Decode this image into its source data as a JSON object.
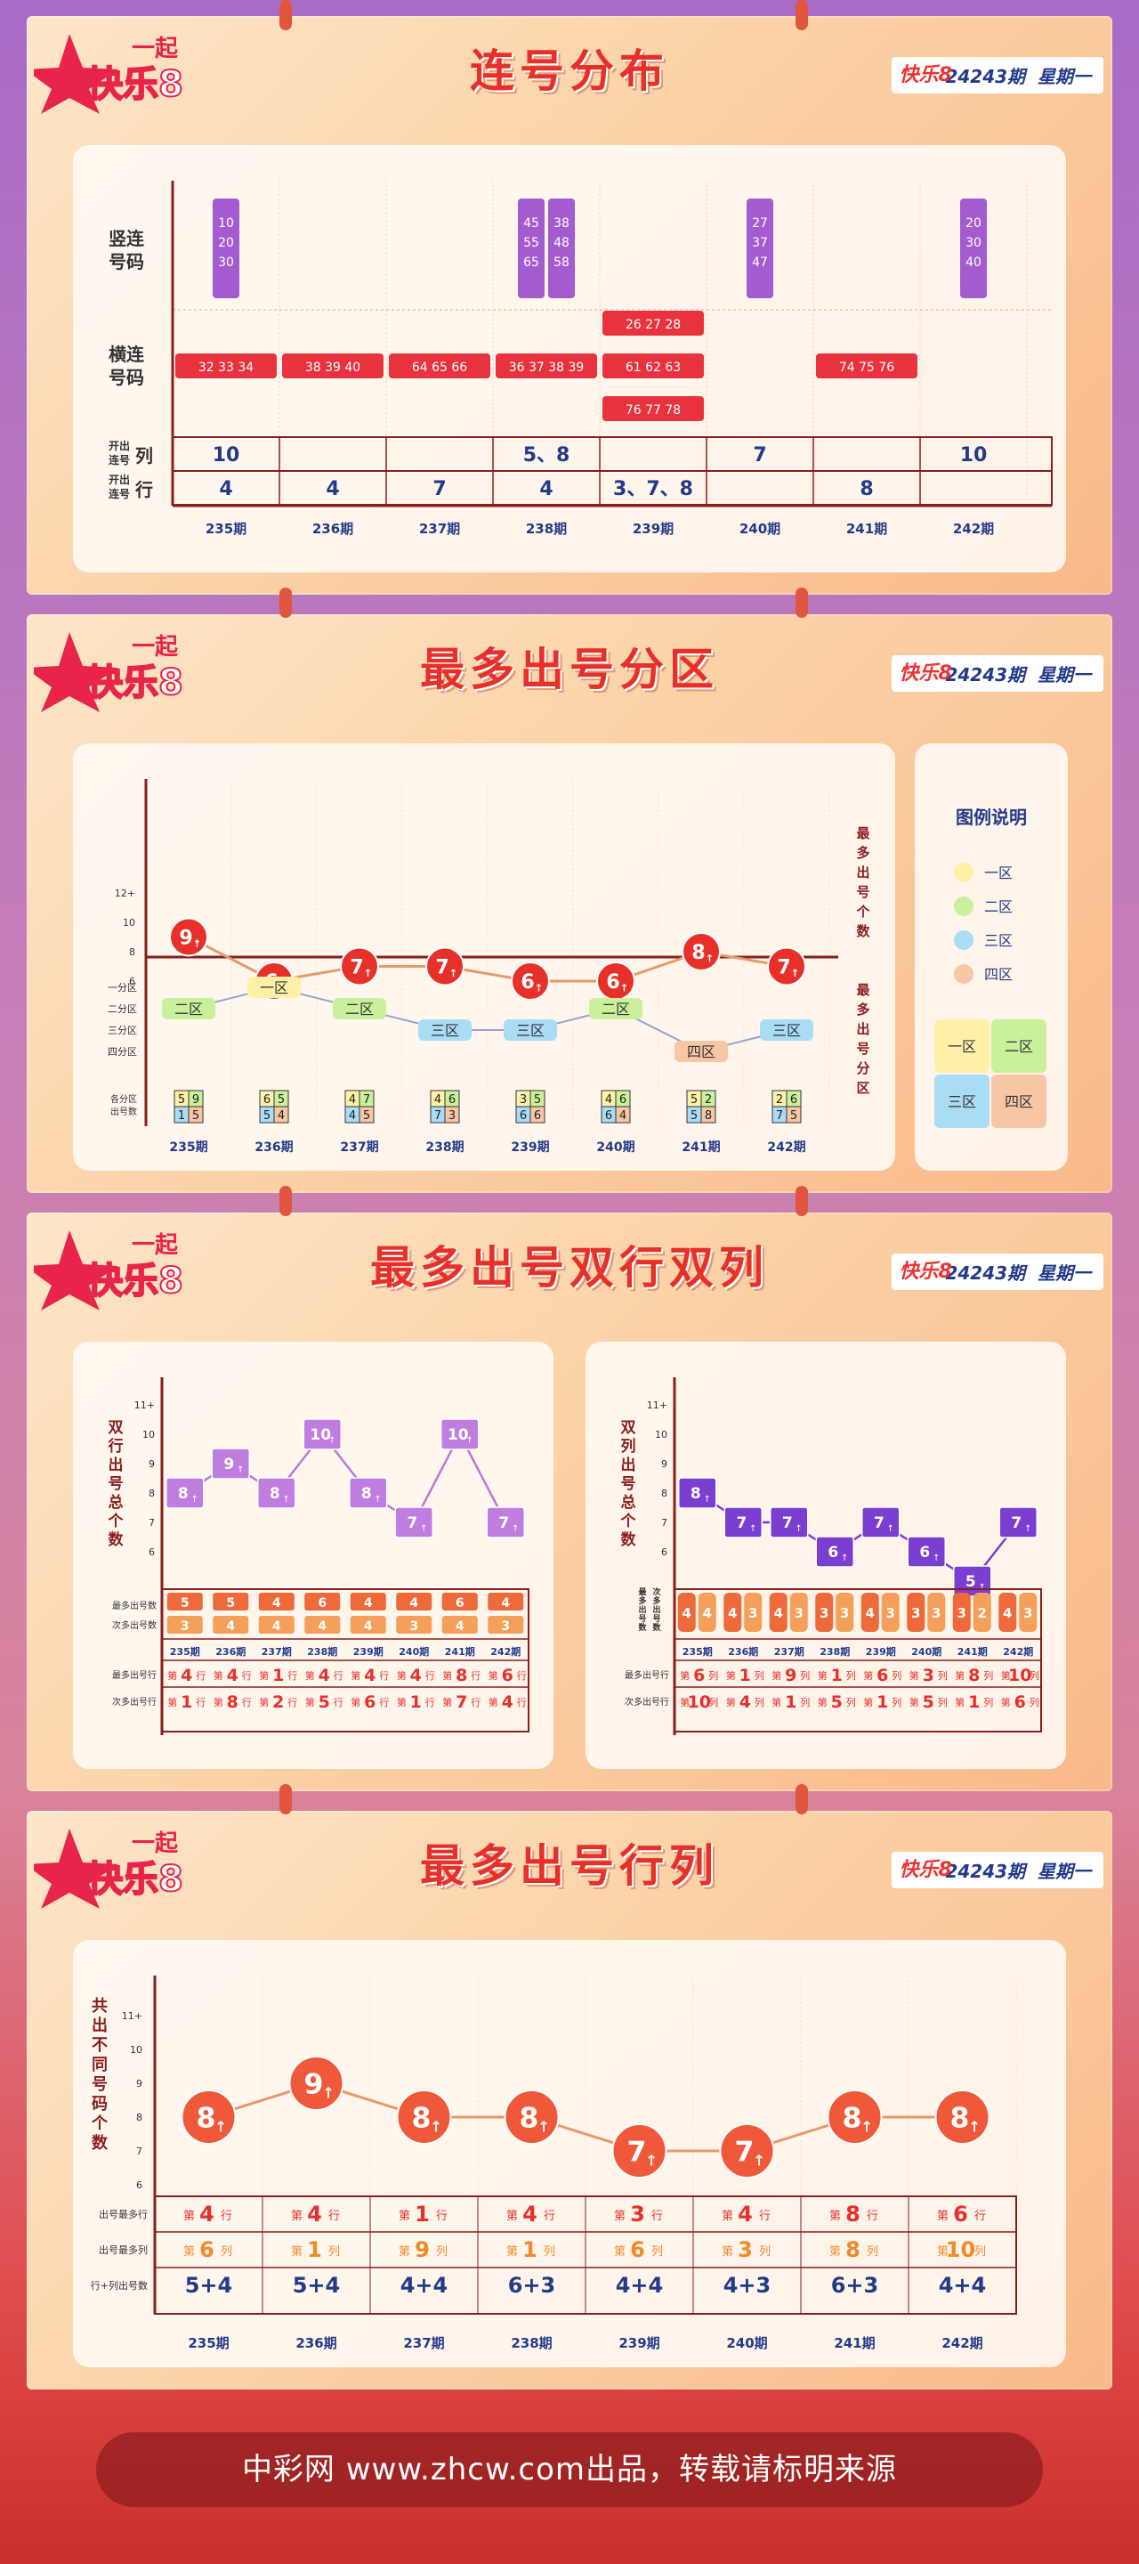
{
  "brand": {
    "logo_top": "一起",
    "logo_main": "快乐8",
    "issue": "24243期",
    "weekday": "星期一",
    "k8": "快乐8"
  },
  "periods": [
    "235期",
    "236期",
    "237期",
    "238期",
    "239期",
    "240期",
    "241期",
    "242期"
  ],
  "s1": {
    "title": "连号分布",
    "row_vertical": "竖连号码",
    "row_horizontal": "横连号码",
    "row_col": "开出连号列",
    "row_row": "开出连号行",
    "row_col_short": "列",
    "row_row_short": "行",
    "row_col_pre": "开出连号",
    "chart_data": {
      "type": "table",
      "vertical": [
        [
          "10",
          "20",
          "30"
        ],
        [],
        [],
        [
          "45",
          "55",
          "65",
          "38",
          "48",
          "58"
        ],
        [],
        [
          "27",
          "37",
          "47"
        ],
        [],
        [
          "20",
          "30",
          "40"
        ]
      ],
      "horizontal": [
        [
          "32 33 34"
        ],
        [
          "38 39 40"
        ],
        [
          "64 65 66"
        ],
        [
          "36 37 38 39"
        ],
        [
          "26 27 28",
          "61 62 63",
          "76 77 78"
        ],
        [],
        [
          "74 75 76"
        ],
        []
      ],
      "cols": [
        "10",
        "",
        "",
        "5、8",
        "",
        "7",
        "",
        "10"
      ],
      "rows": [
        "4",
        "4",
        "7",
        "4",
        "3、7、8",
        "",
        "8",
        ""
      ]
    }
  },
  "s2": {
    "title": "最多出号分区",
    "right_top": "最多出号个数",
    "right_bottom": "最多出号分区",
    "legend_title": "图例说明",
    "legend": [
      "一区",
      "二区",
      "三区",
      "四区"
    ],
    "zone_labels": [
      "一分区",
      "二分区",
      "三分区",
      "四分区"
    ],
    "count_label": "各分区出号数",
    "chart_data": {
      "type": "line",
      "y_ticks": [
        "12+",
        "10",
        "8",
        "6"
      ],
      "max_counts": [
        9,
        6,
        7,
        7,
        6,
        6,
        8,
        7
      ],
      "max_zone": [
        "二区",
        "一区",
        "二区",
        "三区",
        "三区",
        "二区",
        "四区",
        "三区"
      ],
      "zone_counts": [
        [
          5,
          9,
          1,
          5
        ],
        [
          6,
          5,
          5,
          4
        ],
        [
          4,
          7,
          4,
          5
        ],
        [
          4,
          6,
          7,
          3
        ],
        [
          3,
          5,
          6,
          6
        ],
        [
          4,
          6,
          6,
          4
        ],
        [
          5,
          2,
          5,
          8
        ],
        [
          2,
          6,
          7,
          5
        ]
      ]
    }
  },
  "s3": {
    "title": "最多出号双行双列",
    "left_label": "双行出号总个数",
    "right_label": "双列出号总个数",
    "row_max": "最多出号数",
    "row_second": "次多出号数",
    "row_max_line": "最多出号行",
    "row_second_line": "次多出号行",
    "col_label_a": "最多出号数",
    "col_label_b": "次多出号数",
    "col_max_line": "最多出号行",
    "col_second_line": "次多出号行",
    "chart_data": [
      {
        "type": "line",
        "name": "双行",
        "y_ticks": [
          "11+",
          "10",
          "9",
          "8",
          "7",
          "6"
        ],
        "values": [
          8,
          9,
          8,
          10,
          8,
          7,
          10,
          7
        ],
        "max": [
          "5",
          "5",
          "4",
          "6",
          "4",
          "4",
          "6",
          "4"
        ],
        "second": [
          "3",
          "4",
          "4",
          "4",
          "4",
          "3",
          "4",
          "3"
        ],
        "max_line": [
          "4",
          "4",
          "1",
          "4",
          "4",
          "4",
          "8",
          "6"
        ],
        "second_line": [
          "1",
          "8",
          "2",
          "5",
          "6",
          "1",
          "7",
          "4"
        ]
      },
      {
        "type": "line",
        "name": "双列",
        "y_ticks": [
          "11+",
          "10",
          "9",
          "8",
          "7",
          "6"
        ],
        "values": [
          8,
          7,
          7,
          6,
          7,
          6,
          5,
          7
        ],
        "pairs": [
          [
            "4",
            "4"
          ],
          [
            "4",
            "3"
          ],
          [
            "4",
            "3"
          ],
          [
            "3",
            "3"
          ],
          [
            "4",
            "3"
          ],
          [
            "3",
            "3"
          ],
          [
            "3",
            "2"
          ],
          [
            "4",
            "3"
          ]
        ],
        "max_line": [
          "6",
          "1",
          "9",
          "1",
          "6",
          "3",
          "8",
          "10"
        ],
        "second_line": [
          "10",
          "4",
          "1",
          "5",
          "1",
          "5",
          "1",
          "6"
        ]
      }
    ]
  },
  "s4": {
    "title": "最多出号行列",
    "left_label": "共出不同号码个数",
    "row_a": "出号最多行",
    "row_b": "出号最多列",
    "row_c": "行+列出号数",
    "unit_row": "行",
    "unit_col": "列",
    "prefix": "第",
    "chart_data": {
      "type": "line",
      "y_ticks": [
        "11+",
        "10",
        "9",
        "8",
        "7",
        "6"
      ],
      "values": [
        8,
        9,
        8,
        8,
        7,
        7,
        8,
        8
      ],
      "rows": [
        "4",
        "4",
        "1",
        "4",
        "3",
        "4",
        "8",
        "6"
      ],
      "cols": [
        "6",
        "1",
        "9",
        "1",
        "6",
        "3",
        "8",
        "10"
      ],
      "sum": [
        "5+4",
        "5+4",
        "4+4",
        "6+3",
        "4+4",
        "4+3",
        "6+3",
        "4+4"
      ]
    }
  },
  "footer": "中彩网 www.zhcw.com出品，转载请标明来源",
  "colors": {
    "red": "#e8302a",
    "line": "#e69a6c",
    "purple": "#a45bd0",
    "z1": "#fff0a8",
    "z2": "#c9f09a",
    "z3": "#a9dcf5",
    "z4": "#f7c6a4"
  }
}
